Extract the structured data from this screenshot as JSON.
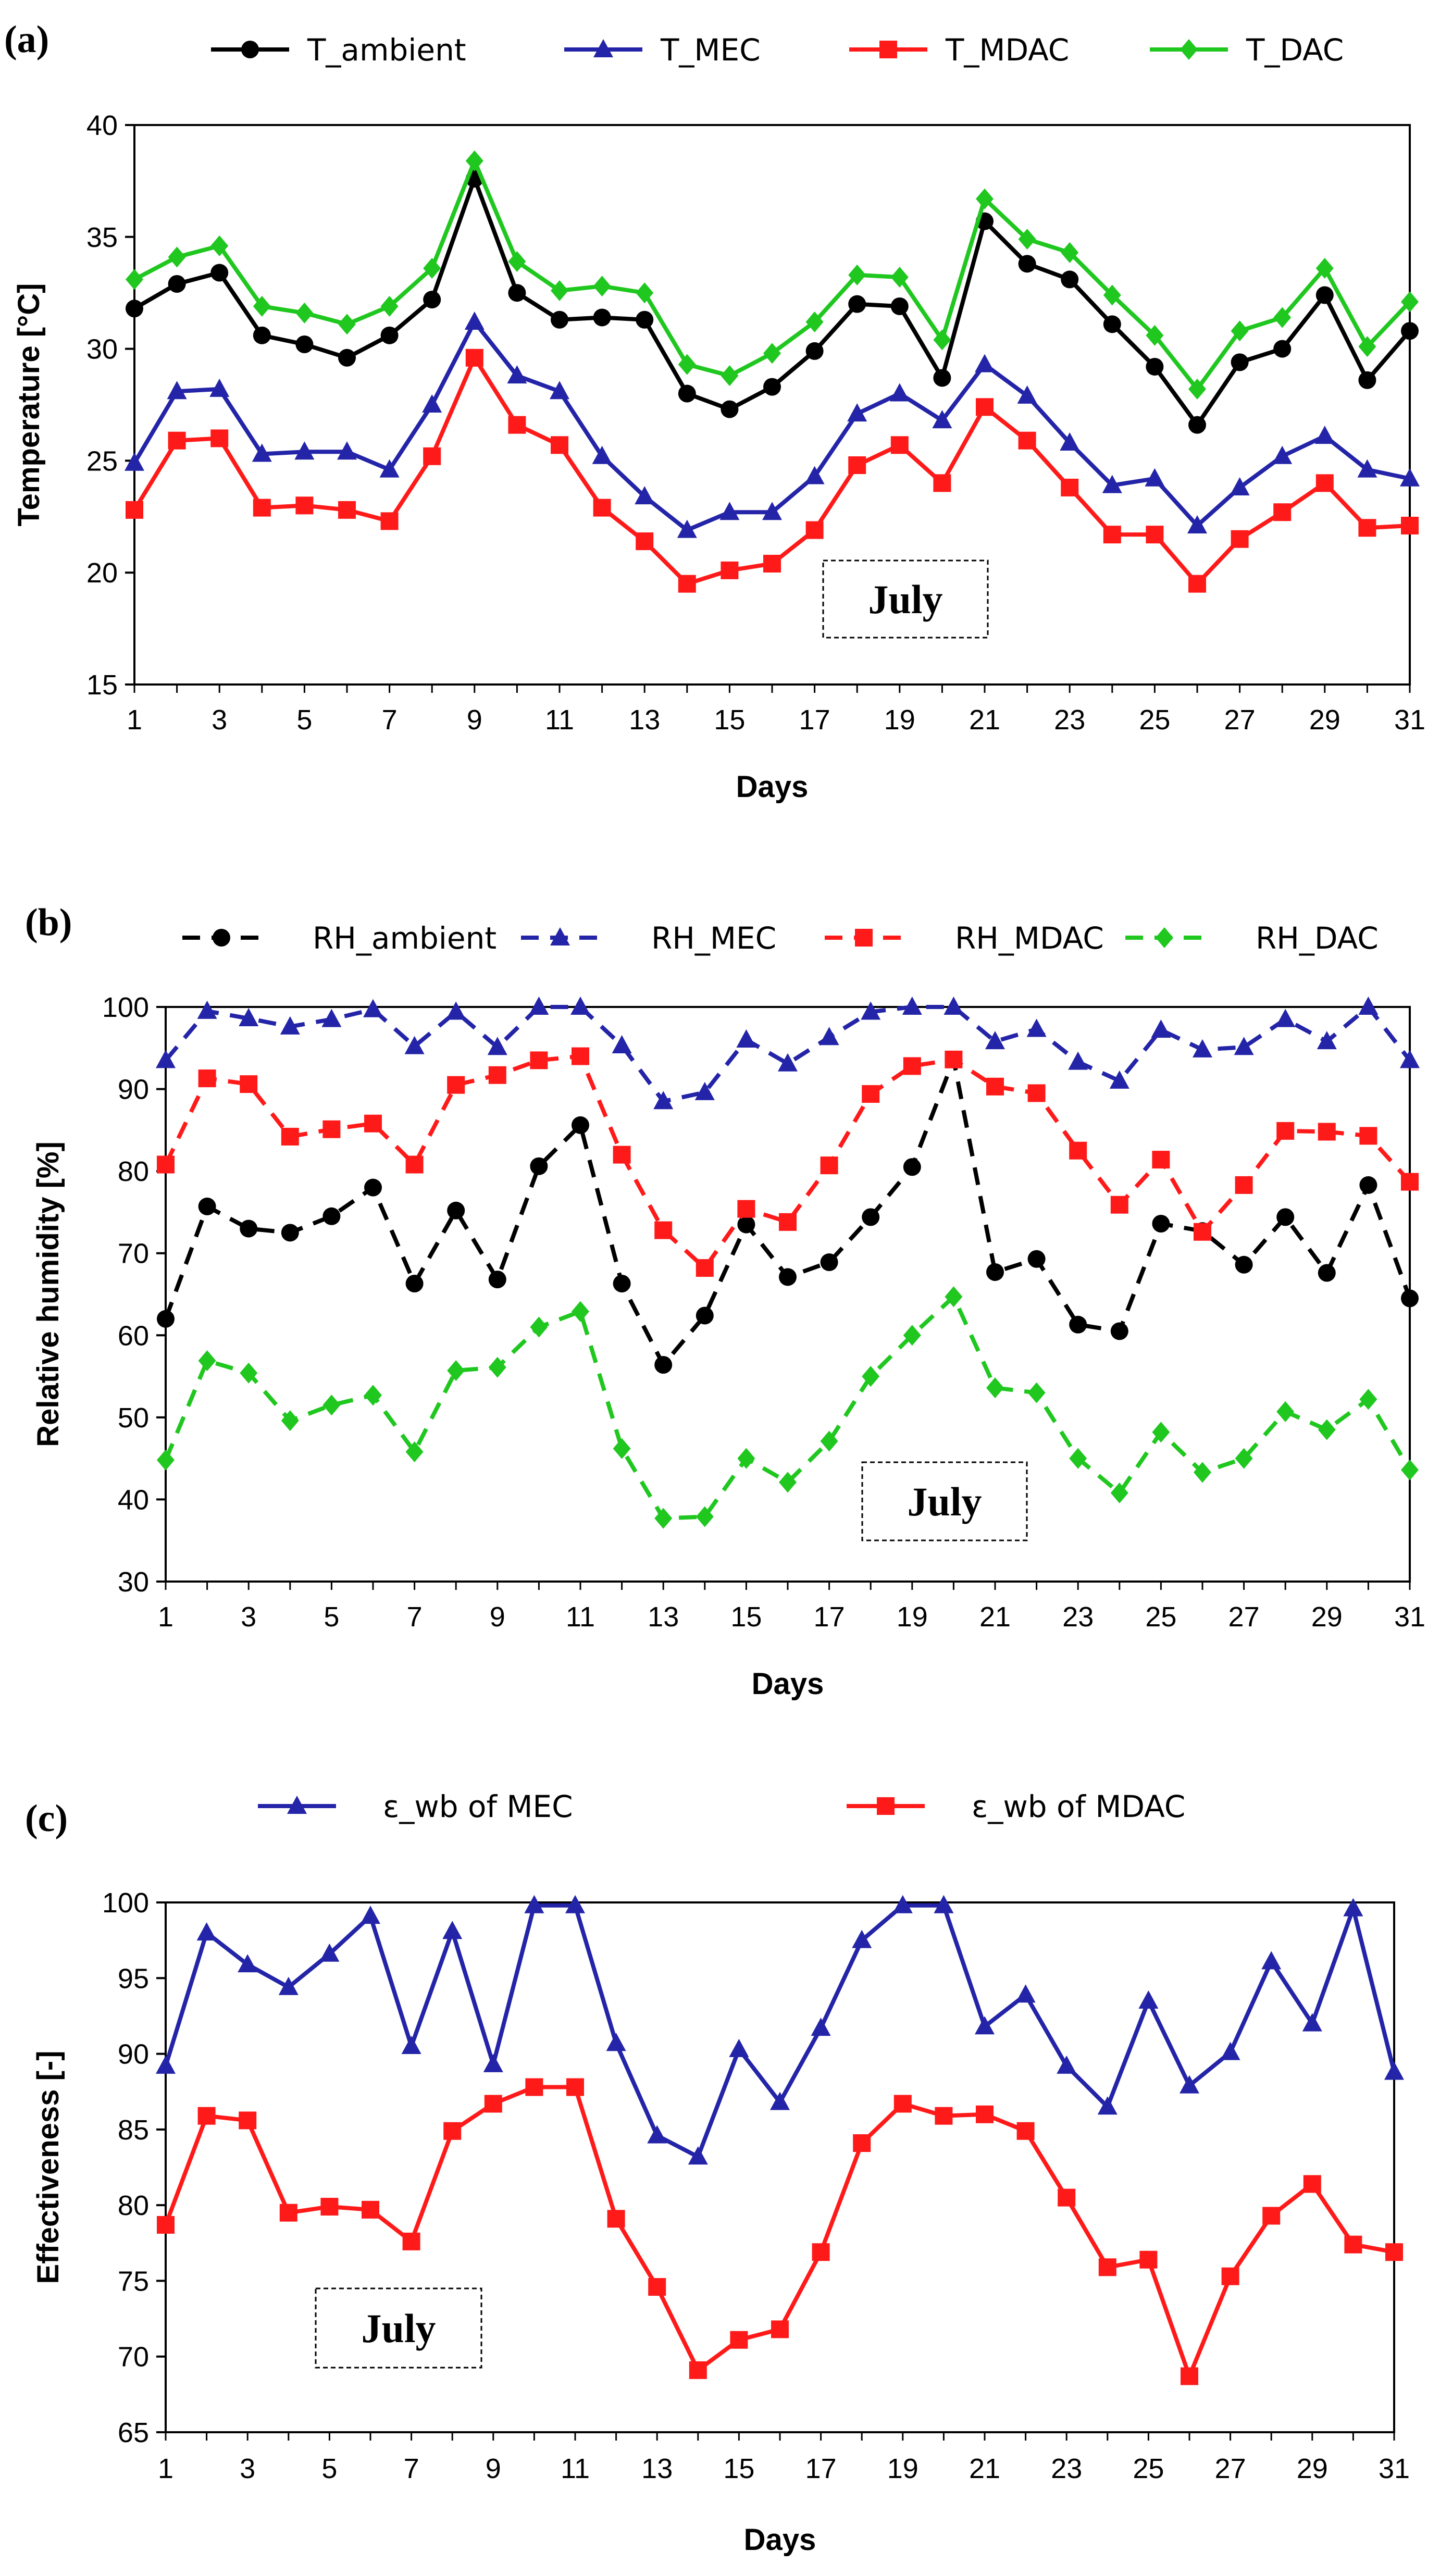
{
  "chart_data": [
    {
      "type": "line",
      "panel_label": "(a)",
      "xlabel": "Days",
      "ylabel": "Temperature [°C]",
      "ylim": [
        15,
        40
      ],
      "yticks": [
        15,
        20,
        25,
        30,
        35,
        40
      ],
      "xtick_labels": [
        "1",
        "3",
        "5",
        "7",
        "9",
        "11",
        "13",
        "15",
        "17",
        "19",
        "21",
        "23",
        "25",
        "27",
        "29",
        "31"
      ],
      "annotation": "July",
      "series": [
        {
          "name": "T_ambient",
          "color": "#000000",
          "marker": "circle",
          "dashed": false,
          "values": [
            31.8,
            32.9,
            33.4,
            30.6,
            30.2,
            29.6,
            30.6,
            32.2,
            37.6,
            32.5,
            31.3,
            31.4,
            31.3,
            28.0,
            27.3,
            28.3,
            29.9,
            32.0,
            31.9,
            28.7,
            35.7,
            33.8,
            33.1,
            31.1,
            29.2,
            26.6,
            29.4,
            30.0,
            32.4,
            28.6,
            30.8
          ]
        },
        {
          "name": "T_MEC",
          "color": "#2424a8",
          "marker": "triangle",
          "dashed": false,
          "values": [
            24.9,
            28.1,
            28.2,
            25.3,
            25.4,
            25.4,
            24.6,
            27.5,
            31.2,
            28.8,
            28.1,
            25.2,
            23.4,
            21.9,
            22.7,
            22.7,
            24.3,
            27.1,
            28.0,
            26.8,
            29.3,
            27.9,
            25.8,
            23.9,
            24.2,
            22.1,
            23.8,
            25.2,
            26.1,
            24.6,
            24.2
          ]
        },
        {
          "name": "T_MDAC",
          "color": "#ff1a1a",
          "marker": "square",
          "dashed": false,
          "values": [
            22.8,
            25.9,
            26.0,
            22.9,
            23.0,
            22.8,
            22.3,
            25.2,
            29.6,
            26.6,
            25.7,
            22.9,
            21.4,
            19.5,
            20.1,
            20.4,
            21.9,
            24.8,
            25.7,
            24.0,
            27.4,
            25.9,
            23.8,
            21.7,
            21.7,
            19.5,
            21.5,
            22.7,
            24.0,
            22.0,
            22.1
          ]
        },
        {
          "name": "T_DAC",
          "color": "#1fc71f",
          "marker": "diamond",
          "dashed": false,
          "values": [
            33.1,
            34.1,
            34.6,
            31.9,
            31.6,
            31.1,
            31.9,
            33.6,
            38.4,
            33.9,
            32.6,
            32.8,
            32.5,
            29.3,
            28.8,
            29.8,
            31.2,
            33.3,
            33.2,
            30.4,
            36.7,
            34.9,
            34.3,
            32.4,
            30.6,
            28.2,
            30.8,
            31.4,
            33.6,
            30.1,
            32.1
          ]
        }
      ]
    },
    {
      "type": "line",
      "panel_label": "(b)",
      "xlabel": "Days",
      "ylabel": "Relative humidity [%]",
      "ylim": [
        30,
        100
      ],
      "yticks": [
        30,
        40,
        50,
        60,
        70,
        80,
        90,
        100
      ],
      "xtick_labels": [
        "1",
        "3",
        "5",
        "7",
        "9",
        "11",
        "13",
        "15",
        "17",
        "19",
        "21",
        "23",
        "25",
        "27",
        "29",
        "31"
      ],
      "annotation": "July",
      "series": [
        {
          "name": "RH_ambient",
          "color": "#000000",
          "marker": "circle",
          "dashed": true,
          "values": [
            62.0,
            75.7,
            73.0,
            72.5,
            74.5,
            78.0,
            66.3,
            75.2,
            66.8,
            80.6,
            85.6,
            66.3,
            56.4,
            62.4,
            73.5,
            67.1,
            68.9,
            74.4,
            80.5,
            93.6,
            67.7,
            69.3,
            61.3,
            60.5,
            73.6,
            72.7,
            68.6,
            74.4,
            67.6,
            78.3,
            64.5
          ]
        },
        {
          "name": "RH_MEC",
          "color": "#2424a8",
          "marker": "triangle",
          "dashed": true,
          "values": [
            93.5,
            99.5,
            98.6,
            97.6,
            98.5,
            99.7,
            95.2,
            99.4,
            95.1,
            100.0,
            100.0,
            95.3,
            88.5,
            89.6,
            96.0,
            93.1,
            96.3,
            99.4,
            100.0,
            100.0,
            95.8,
            97.3,
            93.3,
            91.0,
            97.2,
            94.8,
            95.1,
            98.5,
            95.8,
            100.0,
            93.5
          ]
        },
        {
          "name": "RH_MDAC",
          "color": "#ff1a1a",
          "marker": "square",
          "dashed": true,
          "values": [
            80.8,
            91.3,
            90.6,
            84.2,
            85.1,
            85.8,
            80.8,
            90.5,
            91.7,
            93.5,
            94.0,
            82.0,
            72.8,
            68.2,
            75.4,
            73.8,
            80.7,
            89.4,
            92.8,
            93.6,
            90.3,
            89.5,
            82.5,
            75.9,
            81.4,
            72.6,
            78.3,
            84.9,
            84.8,
            84.3,
            78.7
          ]
        },
        {
          "name": "RH_DAC",
          "color": "#1fc71f",
          "marker": "diamond",
          "dashed": true,
          "values": [
            44.8,
            56.9,
            55.4,
            49.6,
            51.5,
            52.7,
            45.8,
            55.7,
            56.1,
            61.0,
            62.9,
            46.2,
            37.7,
            37.9,
            45.0,
            42.1,
            47.1,
            55.0,
            60.0,
            64.7,
            53.6,
            53.0,
            45.0,
            40.8,
            48.2,
            43.3,
            45.0,
            50.7,
            48.5,
            52.2,
            43.6
          ]
        }
      ]
    },
    {
      "type": "line",
      "panel_label": "(c)",
      "xlabel": "Days",
      "ylabel": "Effectiveness [-]",
      "ylim": [
        65,
        100
      ],
      "yticks": [
        65,
        70,
        75,
        80,
        85,
        90,
        95,
        100
      ],
      "xtick_labels": [
        "1",
        "3",
        "5",
        "7",
        "9",
        "11",
        "13",
        "15",
        "17",
        "19",
        "21",
        "23",
        "25",
        "27",
        "29",
        "31"
      ],
      "annotation": "July",
      "series": [
        {
          "name": "ε_wb of MEC",
          "color": "#2424a8",
          "marker": "triangle",
          "dashed": false,
          "values": [
            89.2,
            98.0,
            95.9,
            94.4,
            96.6,
            99.1,
            90.5,
            98.1,
            89.3,
            99.8,
            99.8,
            90.7,
            84.6,
            83.2,
            90.3,
            86.8,
            91.7,
            97.5,
            99.8,
            99.8,
            91.8,
            93.9,
            89.2,
            86.5,
            93.5,
            87.9,
            90.1,
            96.1,
            92.0,
            99.6,
            88.8
          ]
        },
        {
          "name": "ε_wb of MDAC",
          "color": "#ff1a1a",
          "marker": "square",
          "dashed": false,
          "values": [
            78.7,
            85.9,
            85.6,
            79.5,
            79.9,
            79.7,
            77.6,
            84.9,
            86.7,
            87.8,
            87.8,
            79.1,
            74.6,
            69.1,
            71.1,
            71.8,
            76.9,
            84.1,
            86.7,
            85.9,
            86.0,
            84.9,
            80.5,
            75.9,
            76.4,
            68.7,
            75.3,
            79.3,
            81.4,
            77.4,
            76.9
          ]
        }
      ]
    }
  ]
}
